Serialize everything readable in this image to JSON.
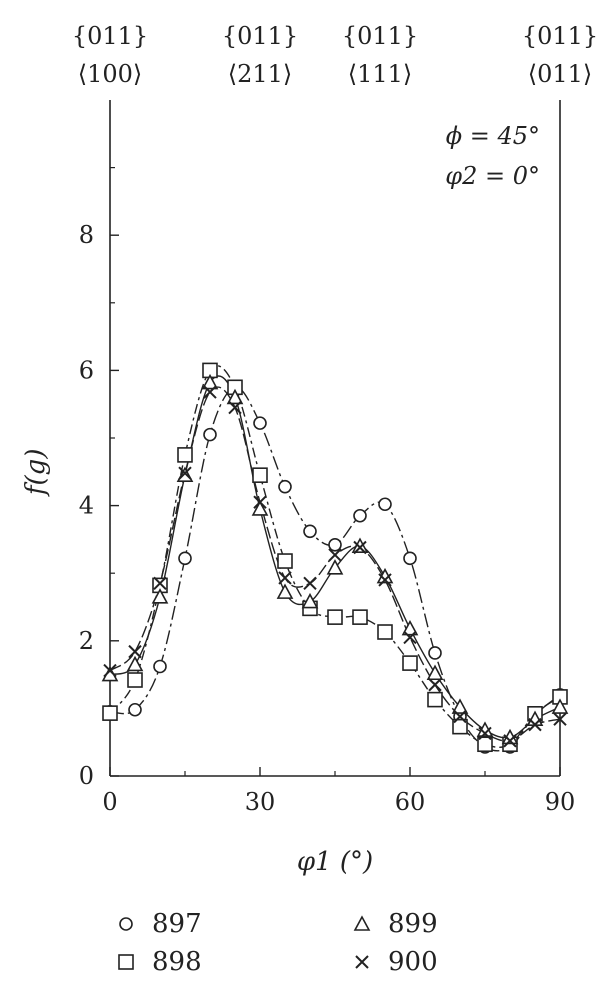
{
  "chart_data": {
    "type": "line",
    "xlabel": "φ1 (°)",
    "ylabel": "f(g)",
    "xlim": [
      0,
      90
    ],
    "ylim": [
      0,
      10
    ],
    "xticks": [
      "0",
      "30",
      "60",
      "90"
    ],
    "yticks": [
      "0",
      "2",
      "4",
      "6",
      "8"
    ],
    "top_labels": [
      {
        "x": 0,
        "line1": "{011}",
        "line2": "⟨100⟩"
      },
      {
        "x": 30,
        "line1": "{011}",
        "line2": "⟨211⟩"
      },
      {
        "x": 54,
        "line1": "{011}",
        "line2": "⟨111⟩"
      },
      {
        "x": 90,
        "line1": "{011}",
        "line2": "⟨011⟩"
      }
    ],
    "annotations": [
      "ϕ = 45°",
      "φ2 = 0°"
    ],
    "grid": false,
    "legend_position": "bottom",
    "x": [
      0,
      5,
      10,
      15,
      20,
      25,
      30,
      35,
      40,
      45,
      50,
      55,
      60,
      65,
      70,
      75,
      80,
      85,
      90
    ],
    "series": [
      {
        "name": "897",
        "marker": "circle",
        "values": [
          0.95,
          0.98,
          1.62,
          3.22,
          5.05,
          5.75,
          5.22,
          4.28,
          3.62,
          3.42,
          3.85,
          4.02,
          3.22,
          1.82,
          0.88,
          0.43,
          0.43,
          0.9,
          1.2
        ]
      },
      {
        "name": "898",
        "marker": "square",
        "values": [
          0.93,
          1.42,
          2.82,
          4.75,
          6.0,
          5.75,
          4.45,
          3.18,
          2.48,
          2.35,
          2.35,
          2.13,
          1.67,
          1.13,
          0.73,
          0.47,
          0.47,
          0.92,
          1.17
        ]
      },
      {
        "name": "899",
        "marker": "triangle",
        "values": [
          1.5,
          1.65,
          2.65,
          4.45,
          5.82,
          5.6,
          3.95,
          2.72,
          2.58,
          3.08,
          3.4,
          2.95,
          2.18,
          1.52,
          1.02,
          0.68,
          0.57,
          0.84,
          1.02
        ]
      },
      {
        "name": "900",
        "marker": "cross",
        "values": [
          1.56,
          1.84,
          2.85,
          4.48,
          5.68,
          5.45,
          4.05,
          2.93,
          2.85,
          3.27,
          3.38,
          2.9,
          2.05,
          1.35,
          0.88,
          0.63,
          0.52,
          0.76,
          0.84
        ]
      }
    ]
  }
}
